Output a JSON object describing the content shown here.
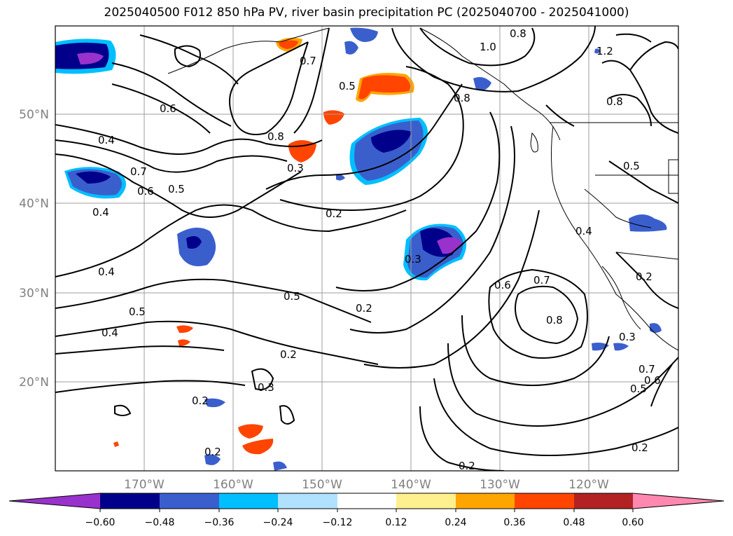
{
  "title": "2025040500 F012 850 hPa PV, river basin precipitation PC (2025040700 - 2025041000)",
  "latitude_labels": [
    "50°N",
    "40°N",
    "30°N",
    "20°N"
  ],
  "longitude_labels": [
    "170°W",
    "160°W",
    "150°W",
    "140°W",
    "130°W",
    "120°W"
  ],
  "colorbar": {
    "colors": [
      "#9932cc",
      "#00008b",
      "#3a5fcd",
      "#00bfff",
      "#b0e2ff",
      "#ffffff",
      "#fff08f",
      "#ffa500",
      "#ff4500",
      "#b22222",
      "#ff88b0"
    ],
    "tick_labels": [
      "−0.60",
      "−0.48",
      "−0.36",
      "−0.24",
      "−0.12",
      "0.12",
      "0.24",
      "0.36",
      "0.48",
      "0.60"
    ]
  },
  "contour_labels": [
    "0.8",
    "1.2",
    "0.7",
    "1.0",
    "0.5",
    "0.8",
    "0.8",
    "0.6",
    "0.4",
    "0.8",
    "0.3",
    "0.7",
    "0.6",
    "0.5",
    "0.4",
    "0.2",
    "0.5",
    "0.4",
    "0.4",
    "0.3",
    "0.5",
    "0.2",
    "0.6",
    "0.7",
    "0.8",
    "0.5",
    "0.4",
    "0.2",
    "0.3",
    "0.2",
    "0.3",
    "0.2",
    "0.2",
    "0.2",
    "0.7",
    "0.6",
    "0.5",
    "0.2"
  ]
}
